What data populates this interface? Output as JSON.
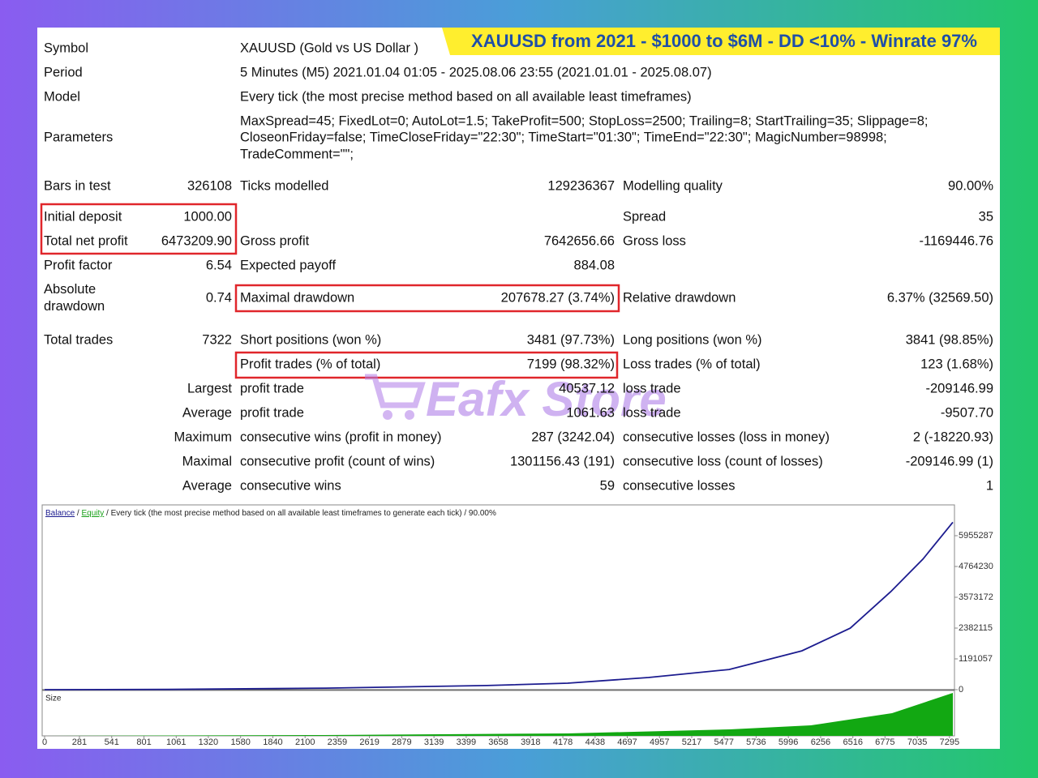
{
  "banner": "XAUUSD from 2021 - $1000 to $6M - DD <10% - Winrate 97%",
  "watermark": "Eafx Store",
  "rows": [
    [
      "Symbol",
      "XAUUSD (Gold vs US Dollar )"
    ],
    [
      "Period",
      "5 Minutes (M5) 2021.01.04 01:05 - 2025.08.06 23:55 (2021.01.01 - 2025.08.07)"
    ],
    [
      "Model",
      "Every tick (the most precise method based on all available least timeframes)"
    ],
    [
      "Parameters",
      "MaxSpread=45; FixedLot=0; AutoLot=1.5; TakeProfit=500; StopLoss=2500; Trailing=8; StartTrailing=35; Slippage=8;",
      "CloseonFriday=false; TimeCloseFriday=\"22:30\"; TimeStart=\"01:30\"; TimeEnd=\"22:30\"; MagicNumber=98998;",
      "TradeComment=\"\";"
    ],
    [
      "Bars in test",
      "326108",
      "Ticks modelled",
      "129236367",
      "Modelling quality",
      "90.00%"
    ],
    [
      "Initial deposit",
      "1000.00",
      "Spread",
      "35"
    ],
    [
      "Total net profit",
      "6473209.90",
      "Gross profit",
      "7642656.66",
      "Gross loss",
      "-1169446.76"
    ],
    [
      "Profit factor",
      "6.54",
      "Expected payoff",
      "884.08"
    ],
    [
      "Absolute drawdown",
      "0.74",
      "Maximal drawdown",
      "207678.27 (3.74%)",
      "Relative drawdown",
      "6.37% (32569.50)"
    ],
    [
      "Total trades",
      "7322",
      "Short positions (won %)",
      "3481 (97.73%)",
      "Long positions (won %)",
      "3841 (98.85%)"
    ],
    [
      "Profit trades (% of total)",
      "7199 (98.32%)",
      "Loss trades (% of total)",
      "123 (1.68%)"
    ],
    [
      "Largest",
      "profit trade",
      "40537.12",
      "loss trade",
      "-209146.99"
    ],
    [
      "Average",
      "profit trade",
      "1061.63",
      "loss trade",
      "-9507.70"
    ],
    [
      "Maximum",
      "consecutive wins (profit in money)",
      "287 (3242.04)",
      "consecutive losses (loss in money)",
      "2 (-18220.93)"
    ],
    [
      "Maximal",
      "consecutive profit (count of wins)",
      "1301156.43 (191)",
      "consecutive loss (count of losses)",
      "-209146.99 (1)"
    ],
    [
      "Average",
      "consecutive wins",
      "59",
      "consecutive losses",
      "1"
    ]
  ],
  "chart_data": {
    "type": "line",
    "legend_parts": [
      "Balance",
      " / ",
      "Equity",
      " / Every tick (the most precise method based on all available least timeframes to generate each tick) / 90.00%"
    ],
    "size_label": "Size",
    "x": [
      0,
      1000,
      2265,
      3567,
      4217,
      4868,
      5519,
      6105,
      6495,
      6821,
      7081,
      7322
    ],
    "series": [
      {
        "name": "Balance",
        "color": "#1c1c8f",
        "values": [
          1000,
          10000,
          60000,
          160000,
          250000,
          470000,
          780000,
          1500000,
          2380000,
          3790000,
          5050000,
          6474210
        ]
      }
    ],
    "xlim": [
      0,
      7322
    ],
    "xticks": [
      0,
      281,
      541,
      801,
      1061,
      1320,
      1580,
      1840,
      2100,
      2359,
      2619,
      2879,
      3139,
      3399,
      3658,
      3918,
      4178,
      4438,
      4697,
      4957,
      5217,
      5477,
      5736,
      5996,
      6256,
      6516,
      6775,
      7035,
      7295
    ],
    "ylim": [
      0,
      7146342
    ],
    "yticks": [
      0,
      1191057,
      2382115,
      3573172,
      4764230,
      5955287
    ],
    "grid": false
  }
}
